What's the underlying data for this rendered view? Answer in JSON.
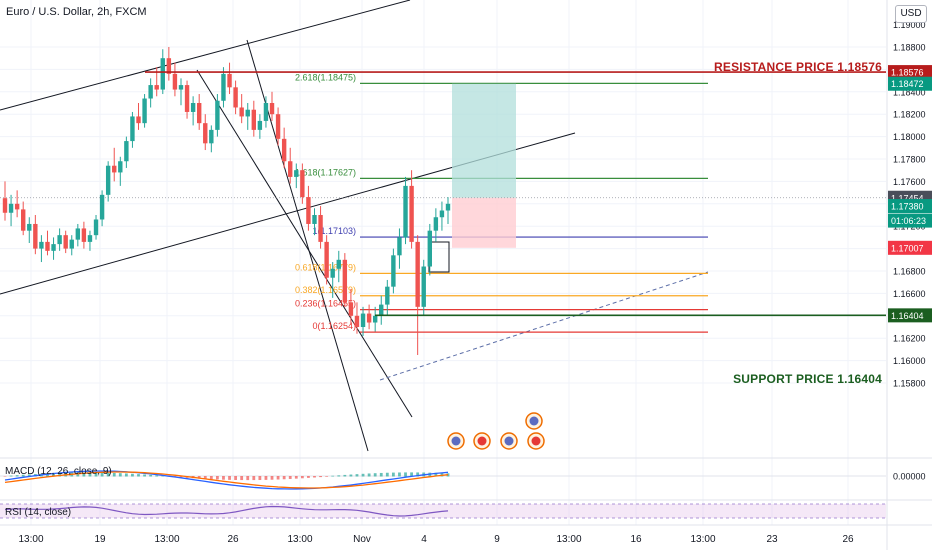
{
  "header": {
    "symbol": "Euro / U.S. Dollar, 2h, FXCM",
    "currency_button": "USD"
  },
  "annotations": {
    "resistance": {
      "label": "RESISTANCE PRICE 1.18576",
      "price": 1.18576,
      "color": "#b71c1c"
    },
    "support": {
      "label": "SUPPORT PRICE 1.16404",
      "price": 1.16404,
      "color": "#1b5e20"
    }
  },
  "indicators": {
    "macd_label": "MACD (12, 26, close, 9)",
    "rsi_label": "RSI (14, close)",
    "macd_tick": "0.00000"
  },
  "chart_data": {
    "type": "candlestick",
    "title": "Euro / U.S. Dollar, 2h, FXCM",
    "y_range": [
      1.156,
      1.189
    ],
    "y_ticks": [
      "1.18800",
      "1.18600",
      "1.18400",
      "1.18200",
      "1.18000",
      "1.17800",
      "1.17600",
      "1.17400",
      "1.17200",
      "1.17000",
      "1.16800",
      "1.16600",
      "1.16400",
      "1.16200",
      "1.16000",
      "1.15800"
    ],
    "y_top_partial_label": "1.19000",
    "x_ticks": [
      "13:00",
      "19",
      "13:00",
      "26",
      "13:00",
      "Nov",
      "4",
      "9",
      "13:00",
      "16",
      "13:00",
      "23",
      "26"
    ],
    "price_labels": [
      {
        "text": "1.18576",
        "value": 1.18576,
        "color": "#b71c1c"
      },
      {
        "text": "1.18472",
        "value": 1.18472,
        "color": "#089981"
      },
      {
        "text": "1.17454",
        "value": 1.17454,
        "color": "#4a4e5a"
      },
      {
        "text": "1.17380",
        "value": 1.1738,
        "color": "#089981"
      },
      {
        "text": "01:06:23",
        "value": 1.1725,
        "color": "#089981"
      },
      {
        "text": "1.17007",
        "value": 1.17007,
        "color": "#f23645"
      },
      {
        "text": "1.16404",
        "value": 1.16404,
        "color": "#1b5e20"
      }
    ],
    "fib_levels": [
      {
        "label": "2.618(1.18475)",
        "value": 1.18475,
        "color": "#388e3c"
      },
      {
        "label": "1.618(1.17627)",
        "value": 1.17627,
        "color": "#388e3c"
      },
      {
        "label": "1(1.17103)",
        "value": 1.17103,
        "color": "#3f3faf"
      },
      {
        "label": "0.618(1.16779)",
        "value": 1.16779,
        "color": "#f9a825"
      },
      {
        "label": "0.382(1.16579)",
        "value": 1.16579,
        "color": "#f9a825"
      },
      {
        "label": "0.236(1.16455)",
        "value": 1.16455,
        "color": "#e53935"
      },
      {
        "label": "0(1.16254)",
        "value": 1.16254,
        "color": "#e53935"
      }
    ],
    "position": {
      "entry": 1.17454,
      "target": 1.18472,
      "stop": 1.17007
    },
    "candles": [
      [
        1.1745,
        1.176,
        1.1725,
        1.1732
      ],
      [
        1.1732,
        1.1748,
        1.172,
        1.174
      ],
      [
        1.174,
        1.1752,
        1.1728,
        1.1735
      ],
      [
        1.1735,
        1.1742,
        1.1712,
        1.1716
      ],
      [
        1.1716,
        1.1728,
        1.1705,
        1.1722
      ],
      [
        1.1722,
        1.173,
        1.1695,
        1.17
      ],
      [
        1.17,
        1.1712,
        1.1688,
        1.1706
      ],
      [
        1.1706,
        1.1716,
        1.1694,
        1.1698
      ],
      [
        1.1698,
        1.171,
        1.169,
        1.1704
      ],
      [
        1.1704,
        1.1718,
        1.1698,
        1.1712
      ],
      [
        1.1712,
        1.1716,
        1.1696,
        1.17
      ],
      [
        1.17,
        1.1712,
        1.1694,
        1.1708
      ],
      [
        1.1708,
        1.1722,
        1.1702,
        1.1718
      ],
      [
        1.1718,
        1.1724,
        1.17,
        1.1706
      ],
      [
        1.1706,
        1.1716,
        1.1698,
        1.1712
      ],
      [
        1.1712,
        1.173,
        1.1708,
        1.1726
      ],
      [
        1.1726,
        1.1752,
        1.172,
        1.1748
      ],
      [
        1.1748,
        1.1778,
        1.1742,
        1.1774
      ],
      [
        1.1774,
        1.179,
        1.176,
        1.1768
      ],
      [
        1.1768,
        1.1782,
        1.1756,
        1.1778
      ],
      [
        1.1778,
        1.18,
        1.1772,
        1.1796
      ],
      [
        1.1796,
        1.1822,
        1.179,
        1.1818
      ],
      [
        1.1818,
        1.183,
        1.1806,
        1.1812
      ],
      [
        1.1812,
        1.1838,
        1.1808,
        1.1834
      ],
      [
        1.1834,
        1.1852,
        1.1826,
        1.1846
      ],
      [
        1.1846,
        1.1862,
        1.1836,
        1.1842
      ],
      [
        1.1842,
        1.1878,
        1.1838,
        1.187
      ],
      [
        1.187,
        1.188,
        1.185,
        1.1856
      ],
      [
        1.1856,
        1.1866,
        1.1836,
        1.1842
      ],
      [
        1.1842,
        1.1852,
        1.1828,
        1.1846
      ],
      [
        1.1846,
        1.185,
        1.1816,
        1.1822
      ],
      [
        1.1822,
        1.1836,
        1.181,
        1.183
      ],
      [
        1.183,
        1.1838,
        1.1806,
        1.1812
      ],
      [
        1.1812,
        1.182,
        1.1788,
        1.1794
      ],
      [
        1.1794,
        1.181,
        1.1786,
        1.1806
      ],
      [
        1.1806,
        1.1838,
        1.18,
        1.1832
      ],
      [
        1.1832,
        1.1862,
        1.1826,
        1.1856
      ],
      [
        1.1856,
        1.1866,
        1.1838,
        1.1844
      ],
      [
        1.1844,
        1.185,
        1.182,
        1.1826
      ],
      [
        1.1826,
        1.1838,
        1.1812,
        1.1818
      ],
      [
        1.1818,
        1.183,
        1.1806,
        1.1824
      ],
      [
        1.1824,
        1.1832,
        1.18,
        1.1806
      ],
      [
        1.1806,
        1.182,
        1.1798,
        1.1814
      ],
      [
        1.1814,
        1.1836,
        1.1808,
        1.183
      ],
      [
        1.183,
        1.184,
        1.1814,
        1.182
      ],
      [
        1.182,
        1.1826,
        1.1792,
        1.1798
      ],
      [
        1.1798,
        1.1808,
        1.1772,
        1.1778
      ],
      [
        1.1778,
        1.179,
        1.1758,
        1.1764
      ],
      [
        1.1764,
        1.1776,
        1.1754,
        1.177
      ],
      [
        1.177,
        1.1776,
        1.174,
        1.1746
      ],
      [
        1.1746,
        1.1756,
        1.1716,
        1.1722
      ],
      [
        1.1722,
        1.1736,
        1.1712,
        1.173
      ],
      [
        1.173,
        1.1738,
        1.17,
        1.1706
      ],
      [
        1.1706,
        1.1712,
        1.1668,
        1.1674
      ],
      [
        1.1674,
        1.1688,
        1.1656,
        1.1682
      ],
      [
        1.1682,
        1.1698,
        1.167,
        1.169
      ],
      [
        1.169,
        1.1696,
        1.1648,
        1.1652
      ],
      [
        1.1652,
        1.1664,
        1.1632,
        1.164
      ],
      [
        1.164,
        1.1652,
        1.1624,
        1.163
      ],
      [
        1.163,
        1.1648,
        1.1622,
        1.1642
      ],
      [
        1.1642,
        1.165,
        1.1628,
        1.1634
      ],
      [
        1.1634,
        1.1648,
        1.1626,
        1.164
      ],
      [
        1.164,
        1.1658,
        1.1632,
        1.165
      ],
      [
        1.165,
        1.1672,
        1.164,
        1.1666
      ],
      [
        1.1666,
        1.17,
        1.166,
        1.1694
      ],
      [
        1.1694,
        1.1718,
        1.1682,
        1.171
      ],
      [
        1.171,
        1.1764,
        1.1704,
        1.1756
      ],
      [
        1.1756,
        1.177,
        1.17,
        1.1706
      ],
      [
        1.1706,
        1.1712,
        1.1605,
        1.1648
      ],
      [
        1.1648,
        1.169,
        1.164,
        1.1684
      ],
      [
        1.1684,
        1.1722,
        1.1676,
        1.1716
      ],
      [
        1.1716,
        1.1736,
        1.1706,
        1.1728
      ],
      [
        1.1728,
        1.1742,
        1.1716,
        1.1734
      ],
      [
        1.1734,
        1.1746,
        1.1722,
        1.174
      ]
    ]
  }
}
